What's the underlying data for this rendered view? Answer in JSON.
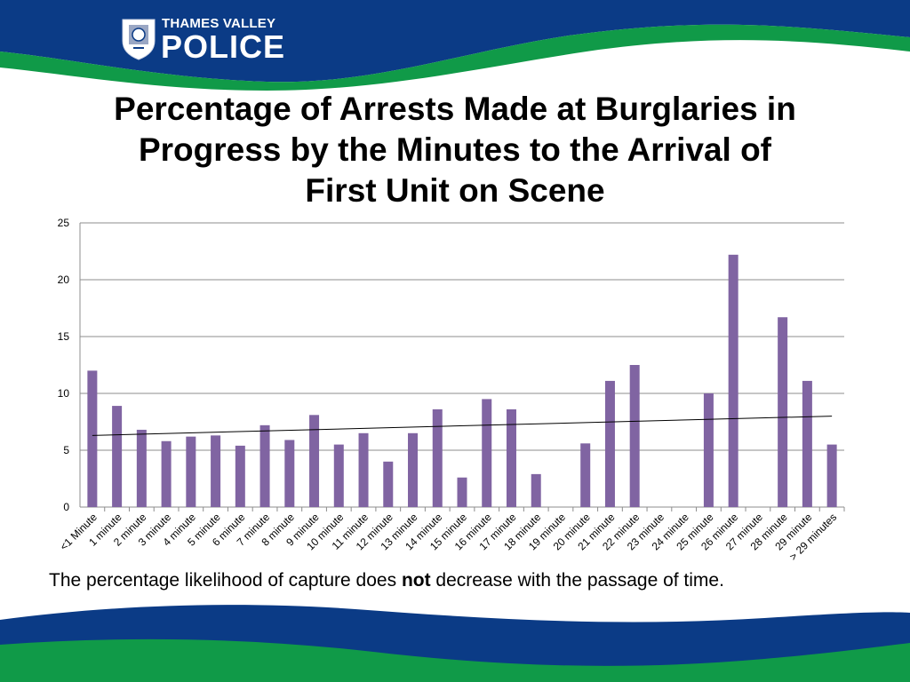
{
  "header": {
    "logo_line1": "THAMES VALLEY",
    "logo_line2": "POLICE",
    "crest_icon": "police-crest-icon",
    "colors": {
      "navy": "#0b3b86",
      "green": "#109a48"
    }
  },
  "slide": {
    "title": "Percentage of Arrests Made at Burglaries in Progress by the Minutes to the Arrival of First Unit on Scene",
    "caption_before": "The percentage likelihood of capture does ",
    "caption_bold": "not",
    "caption_after": " decrease with the passage of time."
  },
  "chart_data": {
    "type": "bar",
    "title": "",
    "xlabel": "",
    "ylabel": "",
    "ylim": [
      0,
      25
    ],
    "yticks": [
      0,
      5,
      10,
      15,
      20,
      25
    ],
    "grid": true,
    "bar_color": "#8064a2",
    "trendline": {
      "type": "linear",
      "start": 6.3,
      "end": 8.0,
      "color": "#000000"
    },
    "categories": [
      "<1 Minute",
      "1 minute",
      "2 minute",
      "3 minute",
      "4 minute",
      "5 minute",
      "6 minute",
      "7 minute",
      "8 minute",
      "9 minute",
      "10 minute",
      "11 minute",
      "12 minute",
      "13 minute",
      "14 minute",
      "15 minute",
      "16 minute",
      "17 minute",
      "18 minute",
      "19 minute",
      "20 minute",
      "21 minute",
      "22 minute",
      "23 minute",
      "24 minute",
      "25 minute",
      "26 minute",
      "27 minute",
      "28 minute",
      "29 minute",
      "> 29 minutes"
    ],
    "values": [
      12.0,
      8.9,
      6.8,
      5.8,
      6.2,
      6.3,
      5.4,
      7.2,
      5.9,
      8.1,
      5.5,
      6.5,
      4.0,
      6.5,
      8.6,
      2.6,
      9.5,
      8.6,
      2.9,
      0,
      5.6,
      11.1,
      12.5,
      0,
      0,
      10.0,
      22.2,
      0,
      16.7,
      11.1,
      5.5
    ]
  }
}
